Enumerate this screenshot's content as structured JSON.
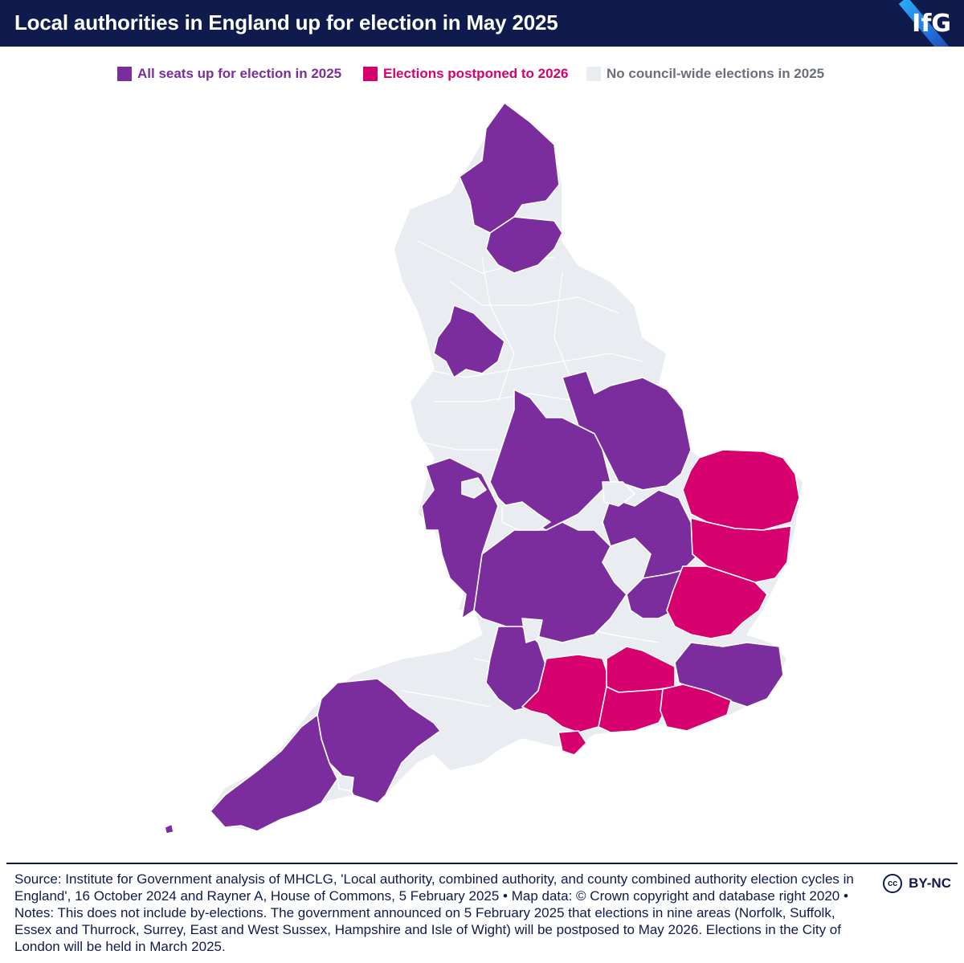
{
  "header": {
    "title": "Local authorities in England up for election in May 2025",
    "logo_text": "IfG"
  },
  "legend": {
    "items": [
      {
        "label": "All seats up for election in 2025",
        "color": "#7b2d9e"
      },
      {
        "label": "Elections postponed to 2026",
        "color": "#d6006e"
      },
      {
        "label": "No council-wide elections in 2025",
        "color": "#e9ecf0"
      }
    ]
  },
  "colors": {
    "all_seats": "#7b2d9e",
    "postponed": "#d6006e",
    "none": "#e9ecf0",
    "border": "#ffffff",
    "header_bg": "#0f1a4d"
  },
  "map": {
    "icon": "england-local-authorities-map"
  },
  "footer": {
    "source": "Source: Institute for Government analysis of MHCLG, 'Local authority, combined authority, and county combined authority election cycles in England', 16 October 2024 and Rayner A, House of Commons, 5 February 2025 • Map data: © Crown copyright and database right 2020  • Notes: This does not include by-elections. The government announced on 5 February 2025 that elections in nine areas (Norfolk, Suffolk, Essex and Thurrock, Surrey, East and West Sussex, Hampshire and Isle of Wight) will be postposed to May 2026. Elections in the City of London will be held in March 2025.",
    "license": "BY-NC",
    "cc_mark": "cc"
  }
}
